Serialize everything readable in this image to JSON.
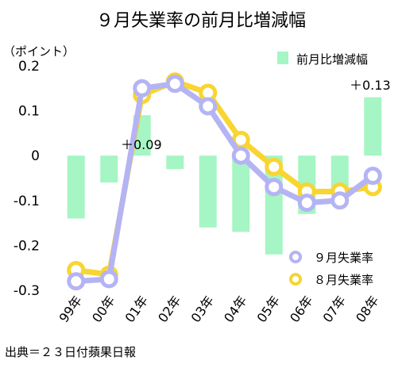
{
  "chart_data": {
    "type": "bar+line",
    "title": "９月失業率の前月比増減幅",
    "unit_label": "（ポイント）",
    "categories": [
      "99年",
      "00年",
      "01年",
      "02年",
      "03年",
      "04年",
      "05年",
      "06年",
      "07年",
      "08年"
    ],
    "bars": {
      "name": "前月比増減幅",
      "color": "#a6f5c4",
      "values": [
        -0.14,
        -0.06,
        0.09,
        -0.03,
        -0.16,
        -0.17,
        -0.22,
        -0.13,
        -0.08,
        0.13
      ]
    },
    "series": [
      {
        "name": "９月失業率",
        "color": "#b4b4f4",
        "values": [
          -0.28,
          -0.275,
          0.15,
          0.16,
          0.11,
          0.0,
          -0.07,
          -0.105,
          -0.1,
          -0.045
        ]
      },
      {
        "name": "８月失業率",
        "color": "#f8d531",
        "values": [
          -0.255,
          -0.265,
          0.135,
          0.165,
          0.14,
          0.035,
          -0.025,
          -0.08,
          -0.08,
          -0.07
        ]
      }
    ],
    "y_ticks": [
      "0.2",
      "0.1",
      "0",
      "-0.1",
      "-0.2",
      "-0.3"
    ],
    "ylim": [
      -0.3,
      0.2
    ],
    "annotations": [
      "＋0.09",
      "＋0.13"
    ],
    "legend_position": "top-right / bottom-right"
  },
  "source": "出典＝２３日付蘋果日報"
}
